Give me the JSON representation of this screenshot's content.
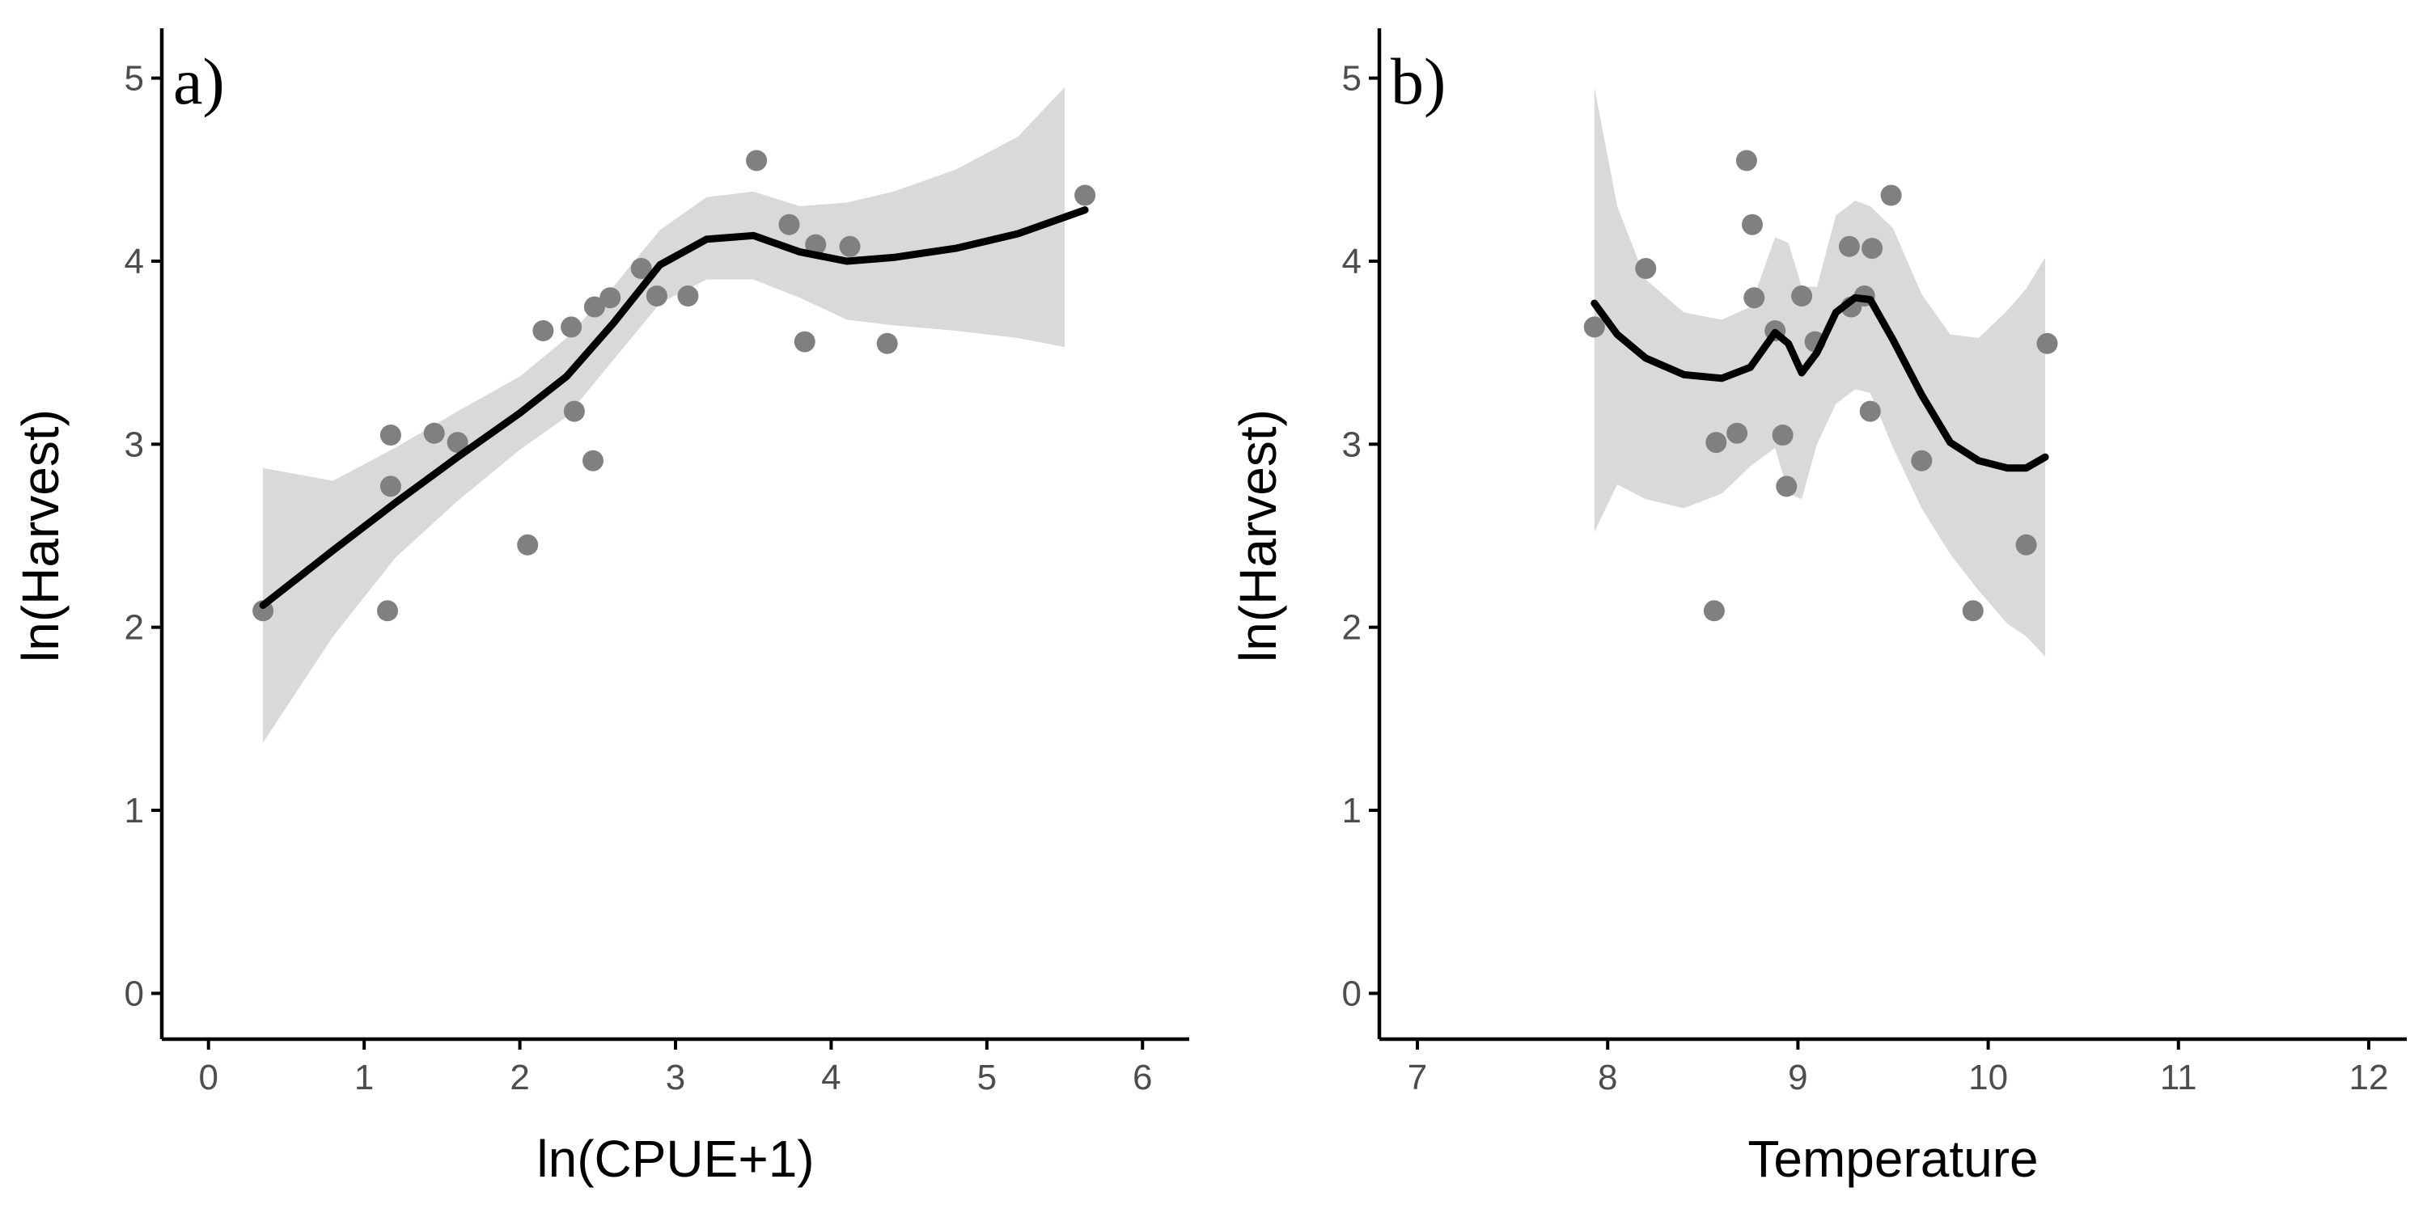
{
  "chart_data": [
    {
      "type": "scatter",
      "panel_label": "a)",
      "xlabel": "ln(CPUE+1)",
      "ylabel": "ln(Harvest)",
      "xlim": [
        -0.3,
        6.3
      ],
      "ylim": [
        -0.25,
        5.25
      ],
      "xticks": [
        0,
        1,
        2,
        3,
        4,
        5,
        6
      ],
      "yticks": [
        0,
        1,
        2,
        3,
        4,
        5
      ],
      "grid": false,
      "colors": {
        "points": "#808080",
        "smooth": "#000000",
        "band": "#d9d9d9"
      },
      "points": {
        "x": [
          0.35,
          1.15,
          1.17,
          1.17,
          1.45,
          1.6,
          2.05,
          2.15,
          2.33,
          2.35,
          2.47,
          2.48,
          2.58,
          2.78,
          2.88,
          3.08,
          3.52,
          3.73,
          3.83,
          3.9,
          4.12,
          4.36,
          5.63
        ],
        "y": [
          2.09,
          2.09,
          3.05,
          2.77,
          3.06,
          3.01,
          2.45,
          3.62,
          3.64,
          3.18,
          2.91,
          3.75,
          3.8,
          3.96,
          3.81,
          3.81,
          4.55,
          4.2,
          3.56,
          4.09,
          4.08,
          3.55,
          4.36
        ]
      },
      "smooth": {
        "x": [
          0.35,
          0.8,
          1.2,
          1.6,
          2.0,
          2.3,
          2.6,
          2.9,
          3.2,
          3.5,
          3.8,
          4.1,
          4.4,
          4.8,
          5.2,
          5.63
        ],
        "y": [
          2.12,
          2.42,
          2.68,
          2.93,
          3.17,
          3.37,
          3.66,
          3.98,
          4.12,
          4.14,
          4.05,
          4.0,
          4.02,
          4.07,
          4.15,
          4.28
        ]
      },
      "band": {
        "x": [
          0.35,
          0.8,
          1.2,
          1.6,
          2.0,
          2.3,
          2.6,
          2.9,
          3.2,
          3.5,
          3.8,
          4.1,
          4.4,
          4.8,
          5.2,
          5.5
        ],
        "upper": [
          2.87,
          2.8,
          2.98,
          3.18,
          3.37,
          3.58,
          3.86,
          4.17,
          4.35,
          4.38,
          4.3,
          4.32,
          4.38,
          4.5,
          4.68,
          4.95
        ],
        "lower": [
          1.37,
          1.95,
          2.38,
          2.69,
          2.97,
          3.15,
          3.46,
          3.77,
          3.9,
          3.9,
          3.8,
          3.68,
          3.65,
          3.62,
          3.58,
          3.53
        ]
      }
    },
    {
      "type": "scatter",
      "panel_label": "b)",
      "xlabel": "Temperature",
      "ylabel": "ln(Harvest)",
      "xlim": [
        6.8,
        12.2
      ],
      "ylim": [
        -0.25,
        5.25
      ],
      "xticks": [
        7,
        8,
        9,
        10,
        11,
        12
      ],
      "yticks": [
        0,
        1,
        2,
        3,
        4,
        5
      ],
      "grid": false,
      "colors": {
        "points": "#808080",
        "smooth": "#000000",
        "band": "#d9d9d9"
      },
      "points": {
        "x": [
          7.93,
          8.2,
          8.56,
          8.57,
          8.68,
          8.73,
          8.76,
          8.77,
          8.88,
          8.92,
          8.94,
          9.02,
          9.09,
          9.27,
          9.28,
          9.35,
          9.38,
          9.39,
          9.49,
          9.65,
          9.92,
          10.2,
          10.31
        ],
        "y": [
          3.64,
          3.96,
          2.09,
          3.01,
          3.06,
          4.55,
          4.2,
          3.8,
          3.62,
          3.05,
          2.77,
          3.81,
          3.56,
          4.08,
          3.75,
          3.81,
          3.18,
          4.07,
          4.36,
          2.91,
          2.09,
          2.45,
          3.55
        ]
      },
      "smooth": {
        "x": [
          7.93,
          8.05,
          8.2,
          8.4,
          8.6,
          8.75,
          8.88,
          8.95,
          9.02,
          9.1,
          9.2,
          9.3,
          9.38,
          9.5,
          9.65,
          9.8,
          9.95,
          10.1,
          10.2,
          10.3
        ],
        "y": [
          3.77,
          3.6,
          3.47,
          3.38,
          3.36,
          3.42,
          3.61,
          3.55,
          3.39,
          3.5,
          3.72,
          3.8,
          3.79,
          3.57,
          3.27,
          3.01,
          2.91,
          2.87,
          2.87,
          2.93
        ]
      },
      "band": {
        "x": [
          7.93,
          8.05,
          8.2,
          8.4,
          8.6,
          8.75,
          8.88,
          8.95,
          9.02,
          9.1,
          9.2,
          9.3,
          9.38,
          9.5,
          9.65,
          9.8,
          9.95,
          10.1,
          10.2,
          10.3
        ],
        "upper": [
          4.95,
          4.3,
          3.9,
          3.72,
          3.68,
          3.75,
          4.13,
          4.1,
          3.86,
          3.86,
          4.25,
          4.33,
          4.3,
          4.18,
          3.82,
          3.6,
          3.58,
          3.73,
          3.85,
          4.02
        ],
        "lower": [
          2.52,
          2.78,
          2.7,
          2.65,
          2.73,
          2.88,
          2.98,
          2.73,
          2.7,
          3.0,
          3.22,
          3.3,
          3.28,
          2.98,
          2.65,
          2.4,
          2.2,
          2.02,
          1.95,
          1.84
        ]
      }
    }
  ]
}
